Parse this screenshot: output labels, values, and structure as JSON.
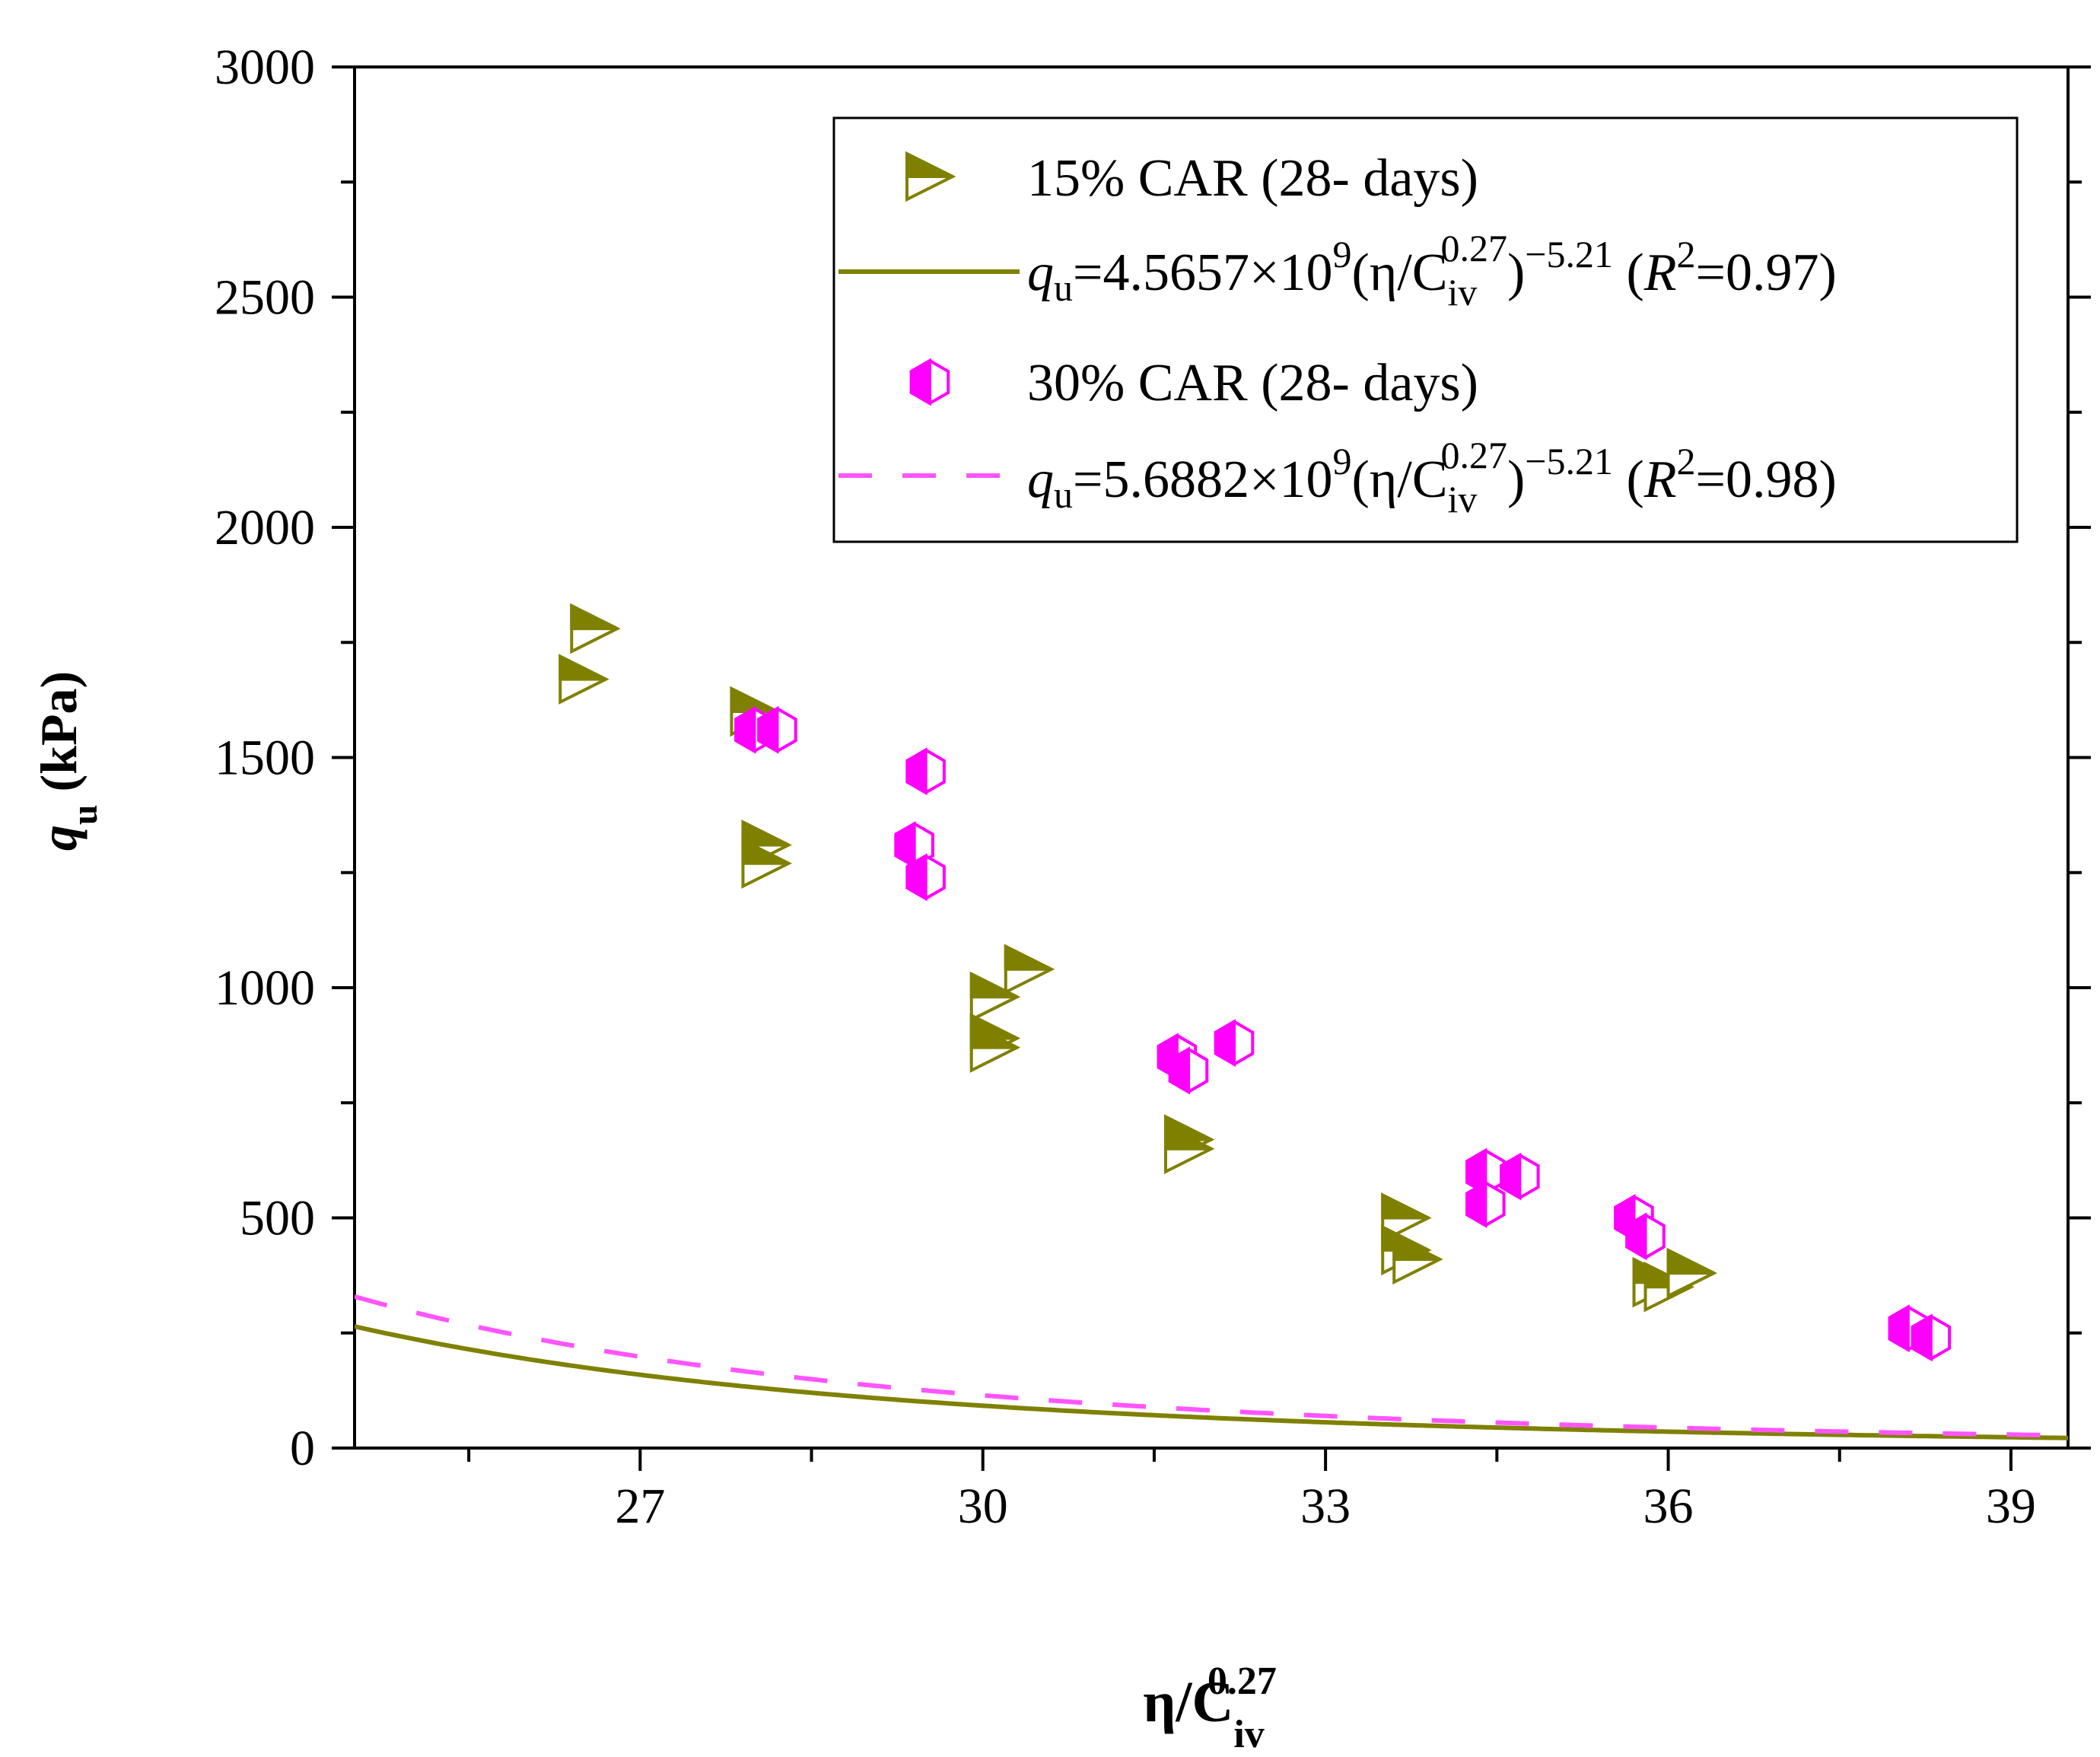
{
  "chart_data": {
    "type": "scatter",
    "title": "",
    "xlabel": {
      "base": "η/C",
      "sub": "iv",
      "sup": "0.27"
    },
    "ylabel": {
      "symbol": "q",
      "sub": "u",
      "rest": " (kPa)"
    },
    "xlim": [
      24.5,
      39.5
    ],
    "ylim": [
      0,
      3000
    ],
    "xticks": [
      27,
      30,
      33,
      36,
      39
    ],
    "yticks": [
      0,
      500,
      1000,
      1500,
      2000,
      2500,
      3000
    ],
    "legend_position": "top-right",
    "series": [
      {
        "name": "15% CAR (28- days)",
        "marker": "right-triangle-half-filled",
        "color": "#808000",
        "points": [
          [
            26.6,
            1780
          ],
          [
            26.5,
            1670
          ],
          [
            28.0,
            1600
          ],
          [
            28.1,
            1310
          ],
          [
            28.1,
            1270
          ],
          [
            30.1,
            980
          ],
          [
            30.4,
            1040
          ],
          [
            30.1,
            890
          ],
          [
            30.1,
            870
          ],
          [
            31.8,
            670
          ],
          [
            31.8,
            650
          ],
          [
            33.7,
            500
          ],
          [
            33.7,
            430
          ],
          [
            33.8,
            410
          ],
          [
            35.9,
            360
          ],
          [
            36.0,
            350
          ],
          [
            36.2,
            380
          ]
        ]
      },
      {
        "name": "30% CAR (28- days)",
        "marker": "hexagon-half-filled",
        "color": "#ff00ff",
        "points": [
          [
            28.0,
            1560
          ],
          [
            28.2,
            1560
          ],
          [
            29.5,
            1470
          ],
          [
            29.4,
            1310
          ],
          [
            29.5,
            1240
          ],
          [
            31.7,
            850
          ],
          [
            31.8,
            820
          ],
          [
            32.2,
            880
          ],
          [
            34.4,
            600
          ],
          [
            34.4,
            530
          ],
          [
            34.7,
            590
          ],
          [
            35.7,
            500
          ],
          [
            35.8,
            460
          ],
          [
            38.1,
            260
          ],
          [
            38.3,
            240
          ]
        ]
      }
    ],
    "fits": [
      {
        "name": "q_u=4.5657×10^9(η/C_iv^0.27)^−5.21 (R^2=0.97)",
        "coefficient": 4565700000.0,
        "exponent": -5.21,
        "r2": 0.97,
        "color": "#808000",
        "style": "solid",
        "legend_text": {
          "q": "q",
          "q_sub": "u",
          "coef": "=4.5657×10",
          "coef_sup": "9",
          "open": "(η/C",
          "c_sub": "iv",
          "c_sup": "0.27",
          "close": ")",
          "exp": "−5.21",
          "r_open": " (",
          "r": "R",
          "r_sup": "2",
          "r_val": "=0.97)"
        }
      },
      {
        "name": "q_u=5.6882×10^9(η/C_iv^0.27)^−5.21 (R^2=0.98)",
        "coefficient": 5688200000.0,
        "exponent": -5.21,
        "r2": 0.98,
        "color": "#ff55ff",
        "style": "dashed",
        "legend_text": {
          "q": "q",
          "q_sub": "u",
          "coef": "=5.6882×10",
          "coef_sup": "9",
          "open": "(η/C",
          "c_sub": "iv",
          "c_sup": "0.27",
          "close": ")",
          "exp": "−5.21",
          "r_open": " (",
          "r": "R",
          "r_sup": "2",
          "r_val": "=0.98)"
        }
      }
    ]
  }
}
